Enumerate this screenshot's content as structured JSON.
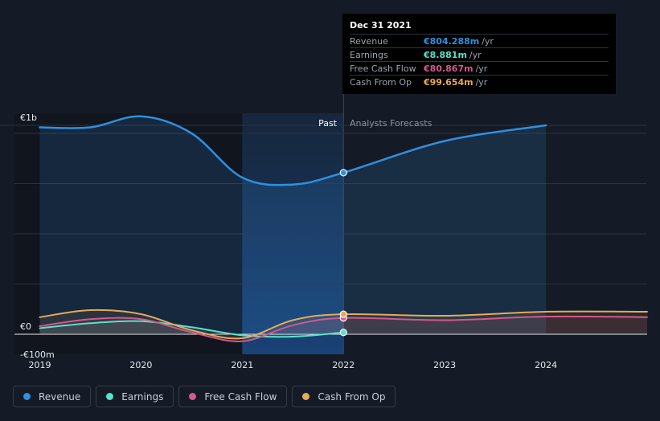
{
  "chart_data": {
    "type": "line",
    "y_tick_labels": [
      "€1b",
      "€0",
      "-€100m"
    ],
    "x_tick_labels": [
      "2019",
      "2020",
      "2021",
      "2022",
      "2023",
      "2024"
    ],
    "x_tick_values": [
      2019,
      2020,
      2021,
      2022,
      2023,
      2024
    ],
    "ylim": [
      -100,
      1100
    ],
    "xlim": [
      2018.75,
      2025
    ],
    "past_label": "Past",
    "forecast_label": "Analysts Forecasts",
    "divider_x": 2022,
    "highlight_range": [
      2021,
      2022
    ],
    "series": [
      {
        "name": "Revenue",
        "color": "#2f8fe0",
        "points": [
          [
            2019,
            1030
          ],
          [
            2019.5,
            1030
          ],
          [
            2020,
            1085
          ],
          [
            2020.5,
            1000
          ],
          [
            2021,
            780
          ],
          [
            2021.5,
            745
          ],
          [
            2022,
            804.288
          ],
          [
            2023,
            962
          ],
          [
            2024,
            1040
          ]
        ]
      },
      {
        "name": "Earnings",
        "color": "#58e2c9",
        "points": [
          [
            2019,
            30
          ],
          [
            2019.5,
            55
          ],
          [
            2020,
            65
          ],
          [
            2020.5,
            35
          ],
          [
            2021,
            -5
          ],
          [
            2021.5,
            -12
          ],
          [
            2022,
            8.881
          ]
        ]
      },
      {
        "name": "Free Cash Flow",
        "color": "#d4588e",
        "points": [
          [
            2019,
            40
          ],
          [
            2019.5,
            75
          ],
          [
            2020,
            75
          ],
          [
            2020.5,
            10
          ],
          [
            2021,
            -35
          ],
          [
            2021.5,
            45
          ],
          [
            2022,
            80.867
          ],
          [
            2023,
            70
          ],
          [
            2024,
            88
          ],
          [
            2025,
            85
          ]
        ]
      },
      {
        "name": "Cash From Op",
        "color": "#e6a95a",
        "points": [
          [
            2019,
            85
          ],
          [
            2019.5,
            120
          ],
          [
            2020,
            100
          ],
          [
            2020.5,
            20
          ],
          [
            2021,
            -20
          ],
          [
            2021.5,
            70
          ],
          [
            2022,
            99.654
          ],
          [
            2023,
            92
          ],
          [
            2024,
            112
          ],
          [
            2025,
            112
          ]
        ]
      }
    ]
  },
  "tooltip": {
    "date": "Dec 31 2021",
    "rows": [
      {
        "label": "Revenue",
        "value": "€804.288m",
        "unit": "/yr",
        "color": "#2f8fe0"
      },
      {
        "label": "Earnings",
        "value": "€8.881m",
        "unit": "/yr",
        "color": "#58e2c9"
      },
      {
        "label": "Free Cash Flow",
        "value": "€80.867m",
        "unit": "/yr",
        "color": "#d4588e"
      },
      {
        "label": "Cash From Op",
        "value": "€99.654m",
        "unit": "/yr",
        "color": "#e6a95a"
      }
    ]
  },
  "legend": [
    {
      "label": "Revenue",
      "color": "#2f8fe0"
    },
    {
      "label": "Earnings",
      "color": "#58e2c9"
    },
    {
      "label": "Free Cash Flow",
      "color": "#d4588e"
    },
    {
      "label": "Cash From Op",
      "color": "#e6a95a"
    }
  ]
}
